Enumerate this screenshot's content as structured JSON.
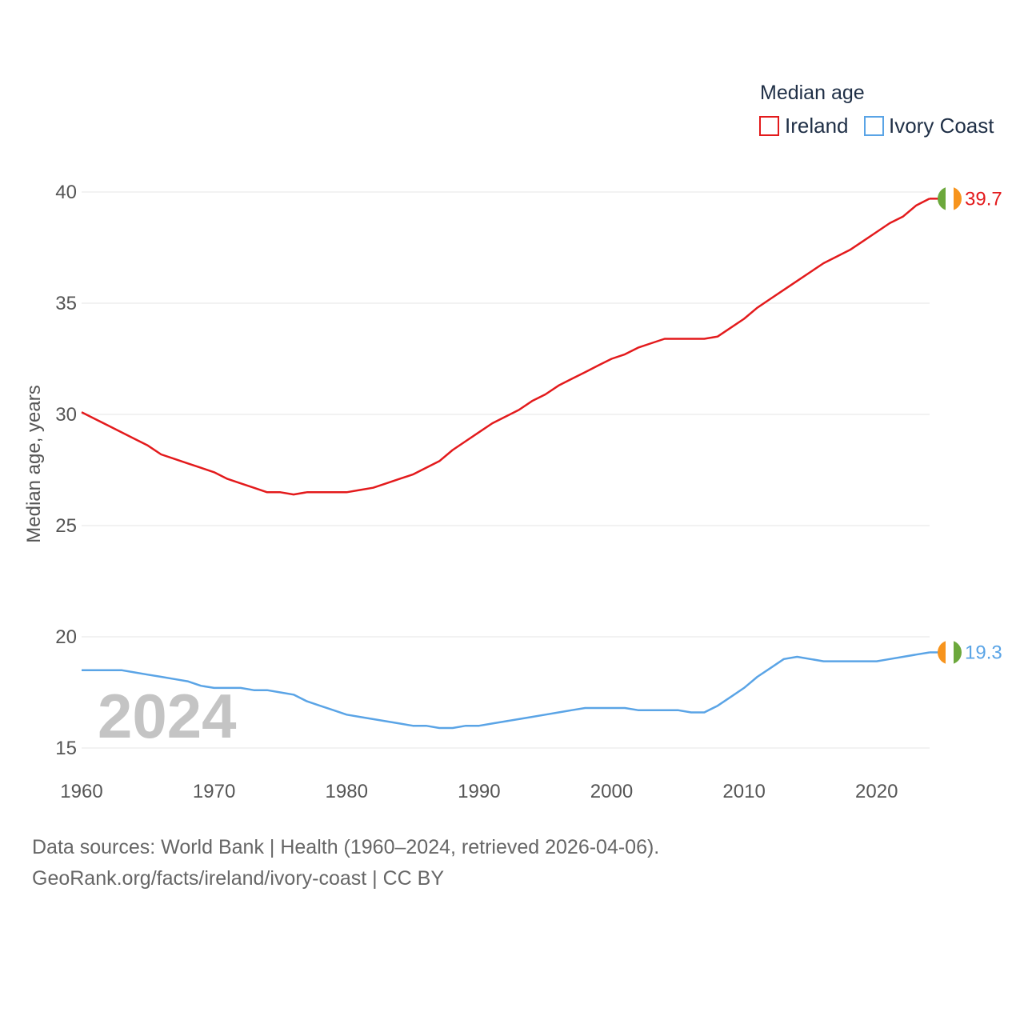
{
  "chart_data": {
    "type": "line",
    "legend_title": "Median age",
    "ylabel": "Median age, years",
    "xlim": [
      1960,
      2024
    ],
    "ylim": [
      15,
      40
    ],
    "yticks": [
      15,
      20,
      25,
      30,
      35,
      40
    ],
    "xticks": [
      1960,
      1970,
      1980,
      1990,
      2000,
      2010,
      2020
    ],
    "highlight_year": "2024",
    "legend_position": "top-right",
    "x": [
      1960,
      1961,
      1962,
      1963,
      1964,
      1965,
      1966,
      1967,
      1968,
      1969,
      1970,
      1971,
      1972,
      1973,
      1974,
      1975,
      1976,
      1977,
      1978,
      1979,
      1980,
      1981,
      1982,
      1983,
      1984,
      1985,
      1986,
      1987,
      1988,
      1989,
      1990,
      1991,
      1992,
      1993,
      1994,
      1995,
      1996,
      1997,
      1998,
      1999,
      2000,
      2001,
      2002,
      2003,
      2004,
      2005,
      2006,
      2007,
      2008,
      2009,
      2010,
      2011,
      2012,
      2013,
      2014,
      2015,
      2016,
      2017,
      2018,
      2019,
      2020,
      2021,
      2022,
      2023,
      2024
    ],
    "series": [
      {
        "name": "Ireland",
        "color": "#e31a1c",
        "end_label": "39.7",
        "values": [
          30.1,
          29.8,
          29.5,
          29.2,
          28.9,
          28.6,
          28.2,
          28.0,
          27.8,
          27.6,
          27.4,
          27.1,
          26.9,
          26.7,
          26.5,
          26.5,
          26.4,
          26.5,
          26.5,
          26.5,
          26.5,
          26.6,
          26.7,
          26.9,
          27.1,
          27.3,
          27.6,
          27.9,
          28.4,
          28.8,
          29.2,
          29.6,
          29.9,
          30.2,
          30.6,
          30.9,
          31.3,
          31.6,
          31.9,
          32.2,
          32.5,
          32.7,
          33.0,
          33.2,
          33.4,
          33.4,
          33.4,
          33.4,
          33.5,
          33.9,
          34.3,
          34.8,
          35.2,
          35.6,
          36.0,
          36.4,
          36.8,
          37.1,
          37.4,
          37.8,
          38.2,
          38.6,
          38.9,
          39.4,
          39.7
        ]
      },
      {
        "name": "Ivory Coast",
        "color": "#5aa4e6",
        "end_label": "19.3",
        "values": [
          18.5,
          18.5,
          18.5,
          18.5,
          18.4,
          18.3,
          18.2,
          18.1,
          18.0,
          17.8,
          17.7,
          17.7,
          17.7,
          17.6,
          17.6,
          17.5,
          17.4,
          17.1,
          16.9,
          16.7,
          16.5,
          16.4,
          16.3,
          16.2,
          16.1,
          16.0,
          16.0,
          15.9,
          15.9,
          16.0,
          16.0,
          16.1,
          16.2,
          16.3,
          16.4,
          16.5,
          16.6,
          16.7,
          16.8,
          16.8,
          16.8,
          16.8,
          16.7,
          16.7,
          16.7,
          16.7,
          16.6,
          16.6,
          16.9,
          17.3,
          17.7,
          18.2,
          18.6,
          19.0,
          19.1,
          19.0,
          18.9,
          18.9,
          18.9,
          18.9,
          18.9,
          19.0,
          19.1,
          19.2,
          19.3
        ]
      }
    ]
  },
  "flag_colors": [
    "#6ca83c",
    "#ffffff",
    "#f7941d"
  ],
  "footer": {
    "sources": "Data sources: World Bank | Health (1960–2024, retrieved 2026-04-06).",
    "url": "GeoRank.org/facts/ireland/ivory-coast | CC BY"
  }
}
